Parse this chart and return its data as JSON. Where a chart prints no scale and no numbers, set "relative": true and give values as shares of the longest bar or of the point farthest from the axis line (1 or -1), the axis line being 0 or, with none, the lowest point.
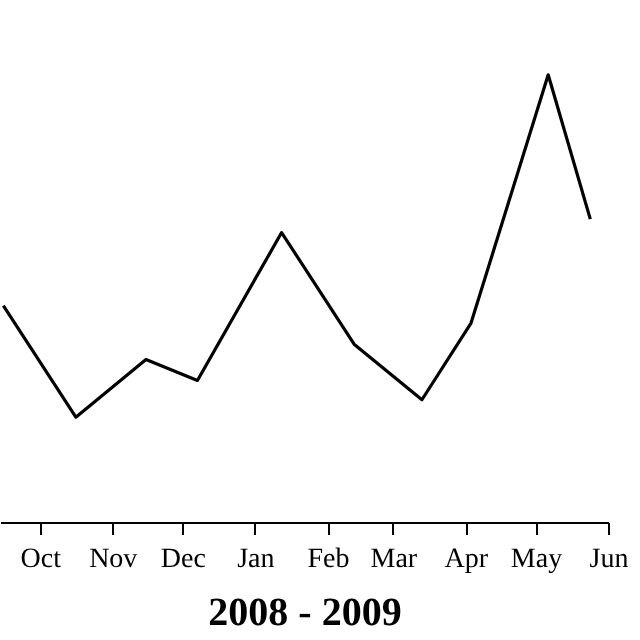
{
  "chart_data": {
    "type": "line",
    "xlabel": "2008 - 2009",
    "relative": true,
    "x": [
      "2008-09-15",
      "2008-10-16",
      "2008-11-15",
      "2008-12-07",
      "2009-01-12",
      "2009-02-12",
      "2009-03-13",
      "2009-04-03",
      "2009-05-06",
      "2009-05-24"
    ],
    "series": [
      {
        "color": "#000000",
        "values": [
          0.485,
          0.236,
          0.365,
          0.318,
          0.648,
          0.399,
          0.275,
          0.446,
          1,
          0.678
        ]
      }
    ],
    "xlim": [
      "2008-09-14",
      "2009-06-01"
    ],
    "xticks": [
      {
        "value": "2008-10",
        "label": "Oct"
      },
      {
        "value": "2008-11",
        "label": "Nov"
      },
      {
        "value": "2008-12",
        "label": "Dec"
      },
      {
        "value": "2009-01",
        "label": "Jan"
      },
      {
        "value": "2009-02",
        "label": "Feb"
      },
      {
        "value": "2009-03",
        "label": "Mar"
      },
      {
        "value": "2009-04",
        "label": "Apr"
      },
      {
        "value": "2009-05",
        "label": "May"
      },
      {
        "value": "2009-06",
        "label": "Jun"
      }
    ],
    "tick_labels": "x",
    "grid": false,
    "marker": "none",
    "line_style": "solid"
  }
}
